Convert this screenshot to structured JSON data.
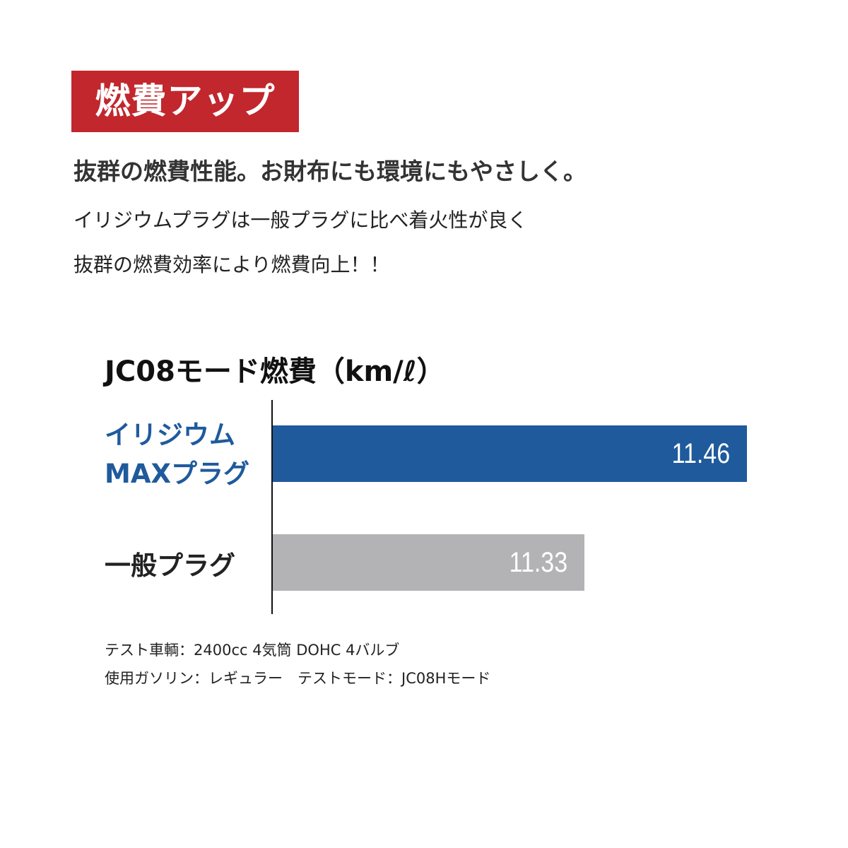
{
  "badge": {
    "label": "燃費アップ",
    "color": "#c1272d"
  },
  "headline": "抜群の燃費性能。お財布にも環境にもやさしく。",
  "body": [
    "イリジウムプラグは一般プラグに比べ着火性が良く",
    "抜群の燃費効率により燃費向上！！"
  ],
  "chart_data": {
    "type": "bar",
    "orientation": "horizontal",
    "title": "JC08モード燃費（km/ℓ）",
    "categories": [
      "イリジウム\nMAXプラグ",
      "一般プラグ"
    ],
    "category_lines": [
      [
        "イリジウム",
        "MAXプラグ"
      ],
      [
        "一般プラグ"
      ]
    ],
    "values": [
      11.46,
      11.33
    ],
    "value_labels": [
      "11.46",
      "11.33"
    ],
    "colors": [
      "#1f5a9c",
      "#b3b3b5"
    ],
    "grid": false
  },
  "notes": [
    "テスト車輌：2400cc 4気筒 DOHC 4バルブ",
    "使用ガソリン：レギュラー　テストモード：JC08Hモード"
  ]
}
